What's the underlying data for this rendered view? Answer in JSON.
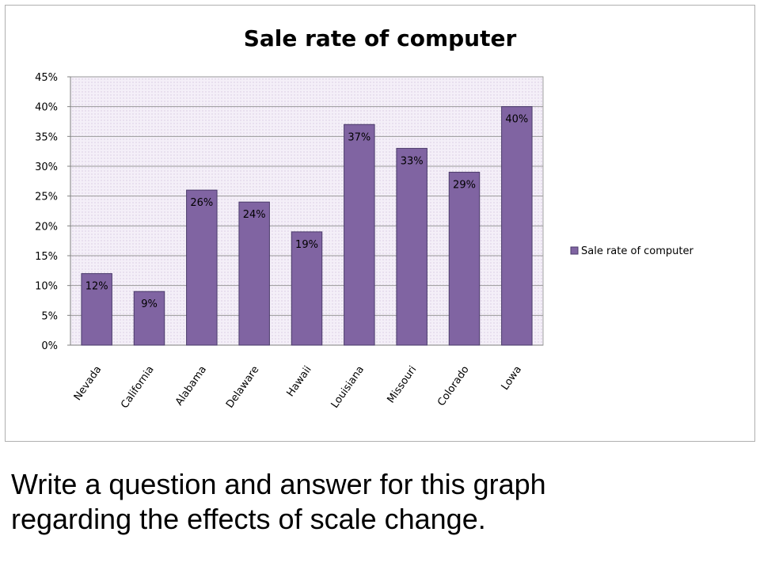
{
  "chart_data": {
    "type": "bar",
    "title": "Sale rate of computer",
    "categories": [
      "Nevada",
      "California",
      "Alabama",
      "Delaware",
      "Hawaii",
      "Louisiana",
      "Missouri",
      "Colorado",
      "Lowa"
    ],
    "series": [
      {
        "name": "Sale rate of computer",
        "values": [
          12,
          9,
          26,
          24,
          19,
          37,
          33,
          29,
          40
        ],
        "labels": [
          "12%",
          "9%",
          "26%",
          "24%",
          "19%",
          "37%",
          "33%",
          "29%",
          "40%"
        ]
      }
    ],
    "yticks": [
      "0%",
      "5%",
      "10%",
      "15%",
      "20%",
      "25%",
      "30%",
      "35%",
      "40%",
      "45%"
    ],
    "ylim": [
      0,
      45
    ],
    "ystep": 5,
    "grid": true,
    "legend_position": "right",
    "colors": {
      "bar": "#8064a2",
      "bar_edge": "#4a3a6a",
      "plot_bg": "#ece4f2",
      "grid": "#9a9a9a",
      "axis": "#808080",
      "text": "#000000"
    }
  },
  "caption": {
    "line1": "Write a question and answer for this graph",
    "line2": "regarding the effects of scale change."
  }
}
